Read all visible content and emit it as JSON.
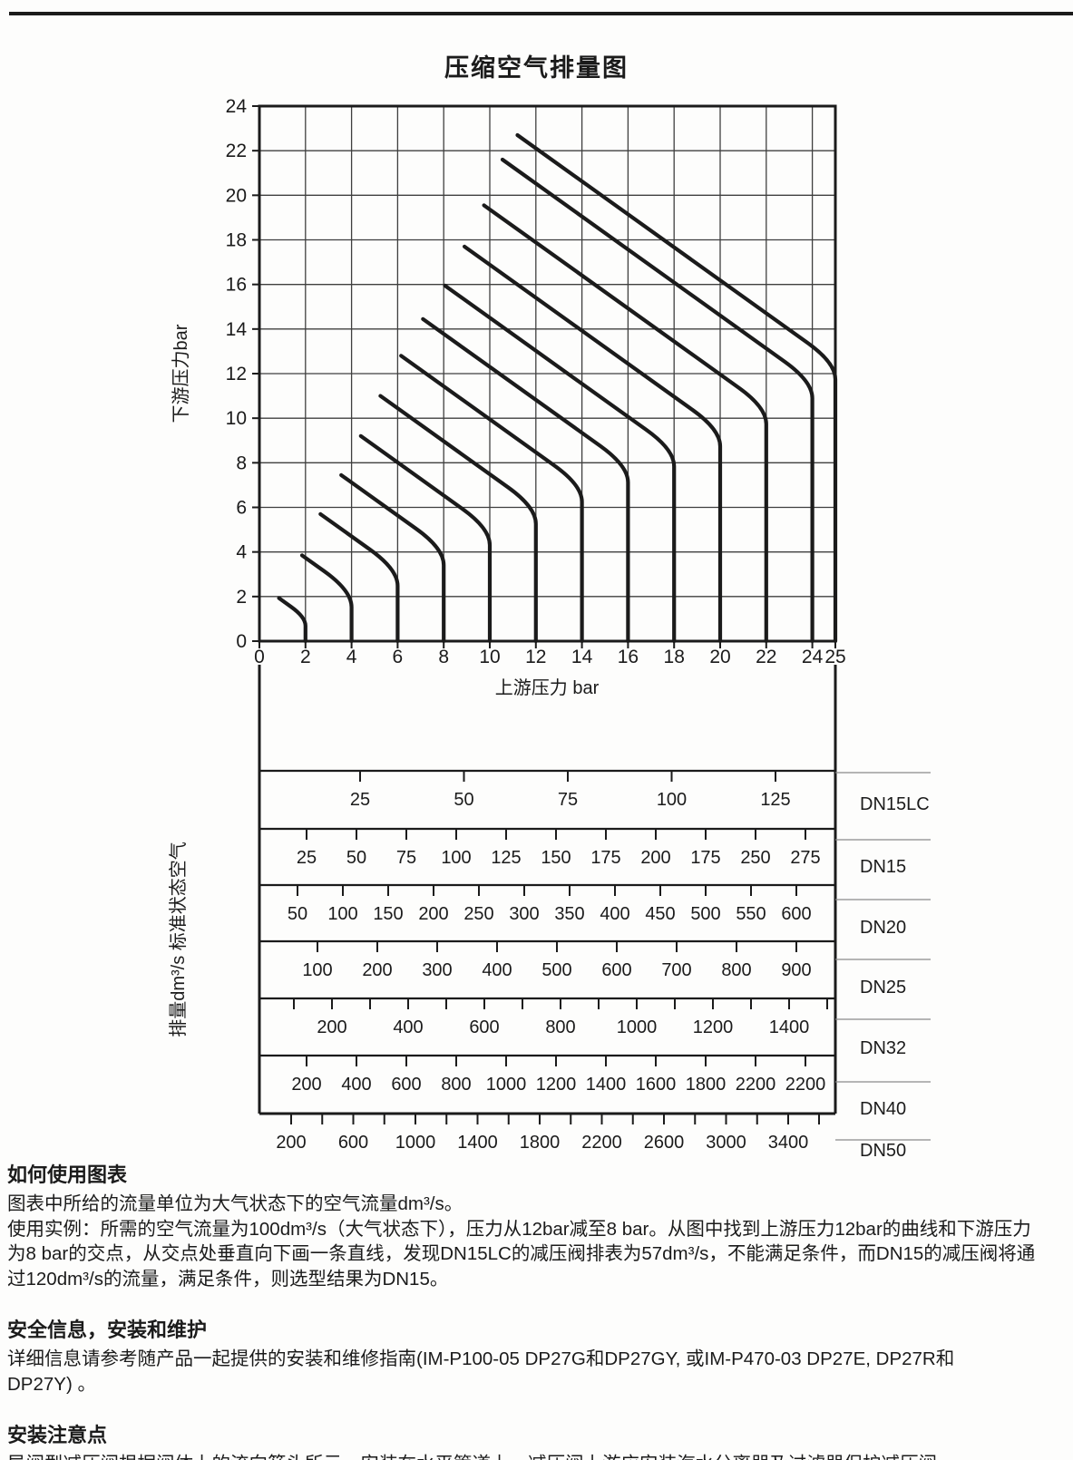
{
  "page": {
    "title": "压缩空气排量图"
  },
  "chart_data": {
    "type": "line",
    "title": "压缩空气排量图",
    "x_axis": {
      "label": "上游压力 bar",
      "min": 0,
      "max": 25,
      "ticks": [
        0,
        2,
        4,
        6,
        8,
        10,
        12,
        14,
        16,
        18,
        20,
        22,
        24,
        25
      ]
    },
    "y_axis": {
      "label": "下游压力bar",
      "min": 0,
      "max": 24,
      "ticks": [
        0,
        2,
        4,
        6,
        8,
        10,
        12,
        14,
        16,
        18,
        20,
        22,
        24
      ]
    },
    "grid_step_bar": 2,
    "curves": [
      {
        "upstream_bar": 2,
        "start": [
          0.85,
          1.93
        ]
      },
      {
        "upstream_bar": 4,
        "start": [
          1.85,
          3.85
        ]
      },
      {
        "upstream_bar": 6,
        "start": [
          2.65,
          5.7
        ]
      },
      {
        "upstream_bar": 8,
        "start": [
          3.55,
          7.45
        ]
      },
      {
        "upstream_bar": 10,
        "start": [
          4.4,
          9.2
        ]
      },
      {
        "upstream_bar": 12,
        "start": [
          5.25,
          11.0
        ]
      },
      {
        "upstream_bar": 14,
        "start": [
          6.15,
          12.8
        ]
      },
      {
        "upstream_bar": 16,
        "start": [
          7.1,
          14.45
        ]
      },
      {
        "upstream_bar": 18,
        "start": [
          8.05,
          15.95
        ]
      },
      {
        "upstream_bar": 20,
        "start": [
          8.9,
          17.7
        ]
      },
      {
        "upstream_bar": 22,
        "start": [
          9.75,
          19.55
        ]
      },
      {
        "upstream_bar": 24,
        "start": [
          10.55,
          21.6
        ]
      },
      {
        "upstream_bar": 25,
        "start": [
          11.2,
          22.7
        ]
      }
    ],
    "flow_table": {
      "axis_label": "排量dm³/s 标准状态空气",
      "rows": [
        {
          "dn": "DN15LC",
          "values": [
            25,
            50,
            75,
            100,
            125
          ]
        },
        {
          "dn": "DN15",
          "values": [
            25,
            50,
            75,
            100,
            125,
            150,
            175,
            200,
            175,
            250,
            275
          ]
        },
        {
          "dn": "DN20",
          "values": [
            50,
            100,
            150,
            200,
            250,
            300,
            350,
            400,
            450,
            500,
            550,
            600
          ]
        },
        {
          "dn": "DN25",
          "values": [
            100,
            200,
            300,
            400,
            500,
            600,
            700,
            800,
            900
          ]
        },
        {
          "dn": "DN32",
          "values": [
            200,
            400,
            600,
            800,
            1000,
            1200,
            1400
          ],
          "minor_ticks": true
        },
        {
          "dn": "DN40",
          "values": [
            200,
            400,
            600,
            800,
            1000,
            1200,
            1400,
            1600,
            1800,
            2200,
            2200
          ]
        },
        {
          "dn": "DN50",
          "values": [
            200,
            600,
            1000,
            1400,
            1800,
            2200,
            2600,
            3000,
            3400
          ],
          "minor_ticks": true
        }
      ]
    }
  },
  "sections": [
    {
      "heading": "如何使用图表",
      "lines": [
        "图表中所给的流量单位为大气状态下的空气流量dm³/s。",
        "使用实例：所需的空气流量为100dm³/s（大气状态下），压力从12bar减至8 bar。从图中找到上游压力12bar的曲线和下游压力",
        "为8 bar的交点，从交点处垂直向下画一条直线，发现DN15LC的减压阀排表为57dm³/s，不能满足条件，而DN15的减压阀将通",
        "过120dm³/s的流量，满足条件，则选型结果为DN15。"
      ]
    },
    {
      "heading": "安全信息，安装和维护",
      "lines": [
        "详细信息请参考随产品一起提供的安装和维修指南(IM-P100-05 DP27G和DP27GY, 或IM-P470-03 DP27E, DP27R和",
        "DP27Y) 。"
      ]
    },
    {
      "heading": "安装注意点",
      "lines": [
        "导阀型减压阀根据阀体上的流向箭头所示，安装在水平管道上。减压阀上游应安装汽水分离器及过滤器保护减压阀。"
      ]
    }
  ]
}
